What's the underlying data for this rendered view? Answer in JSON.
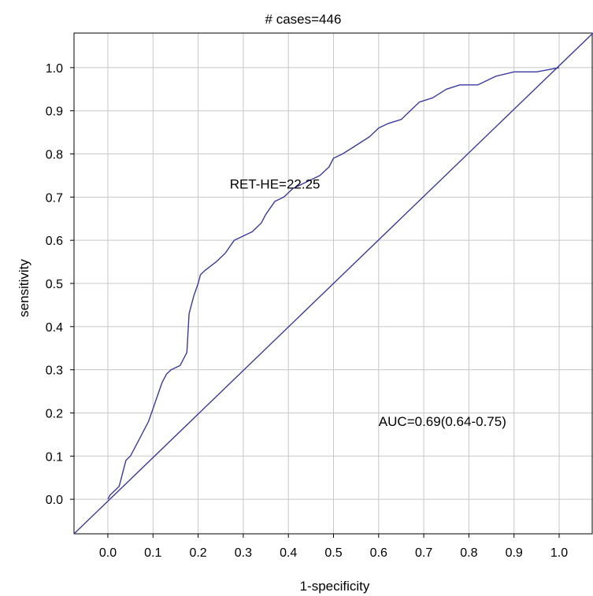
{
  "chart_data": {
    "type": "line",
    "title": "# cases=446",
    "xlabel": "1-specificity",
    "ylabel": "sensitivity",
    "xlim": [
      -0.075,
      1.075
    ],
    "ylim": [
      -0.08,
      1.08
    ],
    "grid": true,
    "x_ticks": [
      "0.0",
      "0.1",
      "0.2",
      "0.3",
      "0.4",
      "0.5",
      "0.6",
      "0.7",
      "0.8",
      "0.9",
      "1.0"
    ],
    "y_ticks": [
      "0.0",
      "0.1",
      "0.2",
      "0.3",
      "0.4",
      "0.5",
      "0.6",
      "0.7",
      "0.8",
      "0.9",
      "1.0"
    ],
    "colors": {
      "curve": "#3a3aa0",
      "grid": "#c8c8c8",
      "frame": "#000000"
    },
    "annotations": {
      "cutoff": {
        "text": "RET-HE=22.25",
        "x": 0.27,
        "y": 0.72
      },
      "auc": {
        "text": "AUC=0.69(0.64-0.75)",
        "x": 0.6,
        "y": 0.17
      }
    },
    "series": [
      {
        "kind": "roc",
        "points": [
          [
            0.0,
            0.0
          ],
          [
            0.005,
            0.01
          ],
          [
            0.015,
            0.02
          ],
          [
            0.025,
            0.03
          ],
          [
            0.03,
            0.05
          ],
          [
            0.035,
            0.07
          ],
          [
            0.04,
            0.09
          ],
          [
            0.05,
            0.1
          ],
          [
            0.06,
            0.12
          ],
          [
            0.07,
            0.14
          ],
          [
            0.08,
            0.16
          ],
          [
            0.09,
            0.18
          ],
          [
            0.1,
            0.21
          ],
          [
            0.11,
            0.24
          ],
          [
            0.12,
            0.27
          ],
          [
            0.13,
            0.29
          ],
          [
            0.14,
            0.3
          ],
          [
            0.16,
            0.31
          ],
          [
            0.175,
            0.34
          ],
          [
            0.18,
            0.43
          ],
          [
            0.19,
            0.47
          ],
          [
            0.2,
            0.5
          ],
          [
            0.205,
            0.52
          ],
          [
            0.215,
            0.53
          ],
          [
            0.24,
            0.55
          ],
          [
            0.26,
            0.57
          ],
          [
            0.28,
            0.6
          ],
          [
            0.3,
            0.61
          ],
          [
            0.32,
            0.62
          ],
          [
            0.34,
            0.64
          ],
          [
            0.35,
            0.66
          ],
          [
            0.37,
            0.69
          ],
          [
            0.39,
            0.7
          ],
          [
            0.41,
            0.72
          ],
          [
            0.43,
            0.73
          ],
          [
            0.45,
            0.74
          ],
          [
            0.47,
            0.75
          ],
          [
            0.49,
            0.77
          ],
          [
            0.5,
            0.79
          ],
          [
            0.52,
            0.8
          ],
          [
            0.55,
            0.82
          ],
          [
            0.58,
            0.84
          ],
          [
            0.6,
            0.86
          ],
          [
            0.62,
            0.87
          ],
          [
            0.65,
            0.88
          ],
          [
            0.67,
            0.9
          ],
          [
            0.69,
            0.92
          ],
          [
            0.72,
            0.93
          ],
          [
            0.75,
            0.95
          ],
          [
            0.78,
            0.96
          ],
          [
            0.82,
            0.96
          ],
          [
            0.86,
            0.98
          ],
          [
            0.9,
            0.99
          ],
          [
            0.95,
            0.99
          ],
          [
            1.0,
            1.0
          ]
        ]
      },
      {
        "kind": "reference",
        "points": [
          [
            -0.075,
            -0.08
          ],
          [
            1.075,
            1.08
          ]
        ]
      }
    ]
  }
}
